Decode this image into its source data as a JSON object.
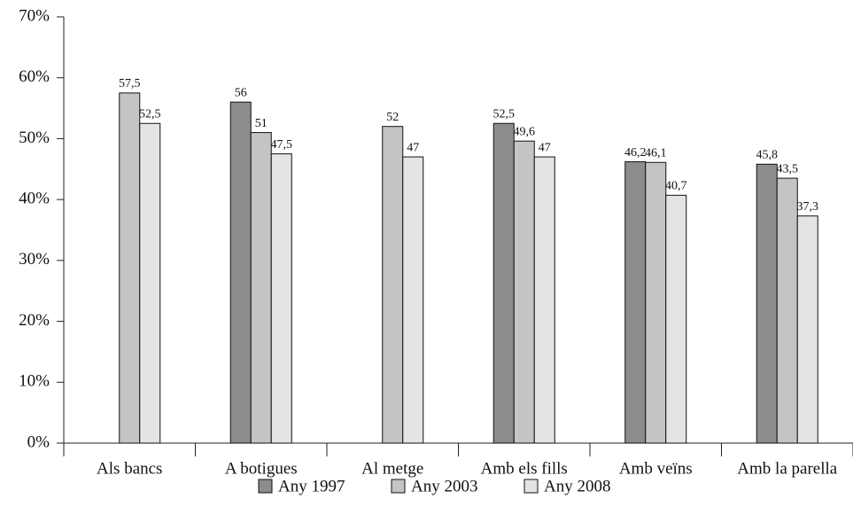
{
  "chart_data": {
    "type": "bar",
    "categories": [
      "Als bancs",
      "A botigues",
      "Al metge",
      "Amb els fills",
      "Amb veïns",
      "Amb la parella"
    ],
    "series": [
      {
        "name": "Any 1997",
        "color": "#8c8c8e",
        "values": [
          null,
          56,
          null,
          52.5,
          46.2,
          45.8
        ],
        "value_labels": [
          null,
          "56",
          null,
          "52,5",
          "46,2",
          "45,8"
        ]
      },
      {
        "name": "Any 2003",
        "color": "#c4c4c6",
        "values": [
          57.5,
          51,
          52,
          49.6,
          46.1,
          43.5
        ],
        "value_labels": [
          "57,5",
          "51",
          "52",
          "49,6",
          "46,1",
          "43,5"
        ]
      },
      {
        "name": "Any 2008",
        "color": "#e4e4e6",
        "values": [
          52.5,
          47.5,
          47,
          47,
          40.7,
          37.3
        ],
        "value_labels": [
          "52,5",
          "47,5",
          "47",
          "47",
          "40,7",
          "37,3"
        ]
      }
    ],
    "ylim": [
      0,
      70
    ],
    "yticks": [
      {
        "value": 0,
        "label": "0%"
      },
      {
        "value": 10,
        "label": "10%"
      },
      {
        "value": 20,
        "label": "20%"
      },
      {
        "value": 30,
        "label": "30%"
      },
      {
        "value": 40,
        "label": "40%"
      },
      {
        "value": 50,
        "label": "50%"
      },
      {
        "value": 60,
        "label": "60%"
      },
      {
        "value": 70,
        "label": "70%"
      }
    ],
    "grid": false,
    "legend": "bottom"
  }
}
